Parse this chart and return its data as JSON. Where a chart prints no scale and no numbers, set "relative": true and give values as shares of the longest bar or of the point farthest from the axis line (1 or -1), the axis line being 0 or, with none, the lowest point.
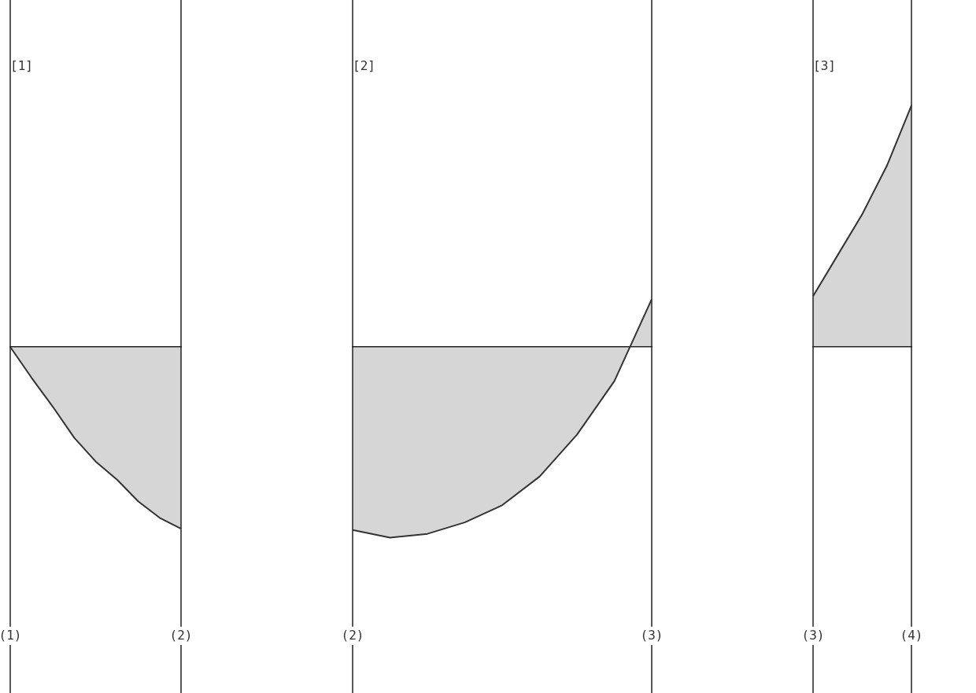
{
  "chart_data": [
    {
      "type": "area",
      "title": "[1]",
      "relative": true,
      "categories": [
        "(1)",
        null,
        null,
        null,
        null,
        null,
        null,
        null,
        "(2)"
      ],
      "series": [
        {
          "color": "#333333",
          "values": [
            0,
            -0.17,
            -0.33,
            -0.5,
            -0.63,
            -0.73,
            -0.85,
            -0.94,
            -1
          ]
        }
      ]
    },
    {
      "type": "area",
      "title": "[2]",
      "relative": true,
      "categories": [
        "(2)",
        null,
        null,
        null,
        null,
        null,
        null,
        null,
        "(3)"
      ],
      "series": [
        {
          "color": "#333333",
          "values": [
            -0.96,
            -1,
            -0.98,
            -0.92,
            -0.83,
            -0.68,
            -0.46,
            -0.18,
            0.25
          ]
        }
      ]
    },
    {
      "type": "area",
      "title": "[3]",
      "relative": true,
      "categories": [
        "(3)",
        null,
        null,
        null,
        "(4)"
      ],
      "series": [
        {
          "color": "#333333",
          "values": [
            0.21,
            0.38,
            0.55,
            0.75,
            1
          ]
        }
      ]
    }
  ]
}
